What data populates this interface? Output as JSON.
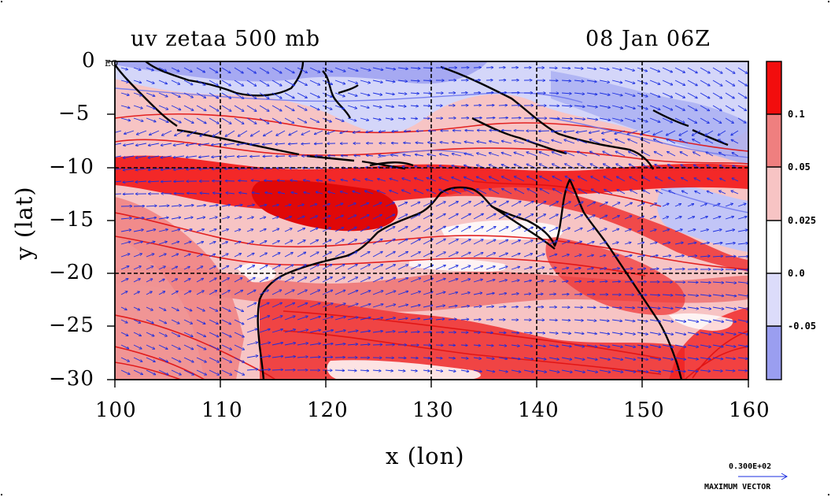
{
  "header": {
    "title": "uv zetaa 500 mb",
    "time": "08 Jan 06Z"
  },
  "map": {
    "x_axis_title": "x (lon)",
    "y_axis_title": "y (lat)",
    "x_ticks": [
      "100",
      "110",
      "120",
      "130",
      "140",
      "150",
      "160"
    ],
    "y_ticks": [
      "0",
      "−5",
      "−10",
      "−15",
      "−20",
      "−25",
      "−30"
    ],
    "eq_marker": "EQ",
    "lon_range": [
      100,
      160
    ],
    "lat_range": [
      -30,
      0
    ],
    "grid": "dashed at every 10° lon and every 10° lat",
    "field_colors": {
      "strong_negative": "#8f95f0",
      "weak_negative": "#d4d6f9",
      "neutral": "#ffffff",
      "weak_positive": "#f7b9b9",
      "moderate_positive": "#ef7f7f",
      "strong_positive": "#f20d0d",
      "vectors": "#1a2ee0",
      "coast": "#000000"
    }
  },
  "colorbar": {
    "labels": [
      "0.1",
      "0.05",
      "0.025",
      "0.0",
      "-0.05"
    ],
    "colors": [
      "#f20d0d",
      "#ef7f7f",
      "#f7c4c4",
      "#ffffff",
      "#dcdcfa",
      "#9a9ef0"
    ]
  },
  "vector_key": {
    "value": "0.300E+02",
    "label": "MAXIMUM VECTOR"
  }
}
